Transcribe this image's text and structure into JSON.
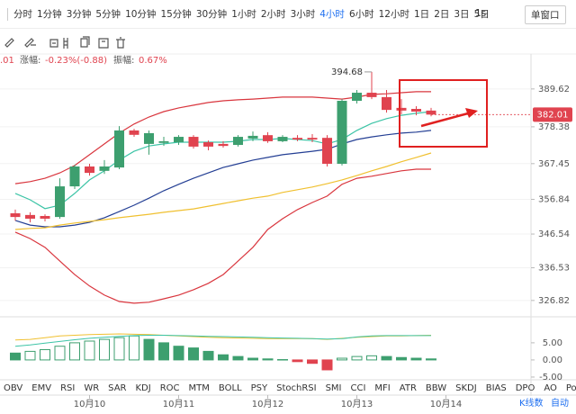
{
  "toolbar": {
    "intervals": [
      "分时",
      "1分钟",
      "3分钟",
      "5分钟",
      "10分钟",
      "15分钟",
      "30分钟",
      "1小时",
      "2小时",
      "3小时",
      "4小时",
      "6小时",
      "12小时",
      "1日",
      "2日",
      "3日",
      "5日"
    ],
    "active_index": 10,
    "speed": "1s",
    "window": "单窗口"
  },
  "info": {
    "last_fragment": ".01",
    "change_label": "涨幅:",
    "change_value": "-0.23%(-0.88)",
    "amplitude_label": "振幅:",
    "amplitude_value": "0.67%"
  },
  "indicators": [
    "OBV",
    "EMV",
    "RSI",
    "WR",
    "SAR",
    "KDJ",
    "ROC",
    "MTM",
    "BOLL",
    "PSY",
    "StochRSI",
    "SMI",
    "CCI",
    "MFI",
    "ATR",
    "BBW",
    "SKDJ",
    "BIAS",
    "DPO",
    "AO",
    "Position"
  ],
  "footer": {
    "kline_count": "K线数",
    "auto": "自动"
  },
  "chart_data": {
    "type": "candlestick",
    "categories": [
      null,
      null,
      null,
      null,
      null,
      "10月10",
      null,
      null,
      null,
      null,
      null,
      "10月11",
      null,
      null,
      null,
      null,
      null,
      "10月12",
      null,
      null,
      null,
      null,
      null,
      "10月13",
      null,
      null,
      null,
      null,
      null,
      "10月14"
    ],
    "open": [
      352.7,
      352.2,
      351.9,
      351.6,
      360.7,
      366.6,
      365.3,
      366.3,
      377.3,
      373.3,
      373.6,
      373.8,
      375.4,
      373.8,
      373.3,
      373.0,
      374.9,
      375.9,
      374.1,
      375.1,
      375.1,
      375.1,
      367.4,
      386.1,
      388.5,
      387.2,
      384.0,
      383.7,
      383.2,
      null
    ],
    "high": [
      353.8,
      353.0,
      352.4,
      363.1,
      367.1,
      367.4,
      368.5,
      378.6,
      377.8,
      377.3,
      375.4,
      375.9,
      375.9,
      374.3,
      374.1,
      375.9,
      377.0,
      376.8,
      375.9,
      375.9,
      376.2,
      375.9,
      386.6,
      389.3,
      394.68,
      389.3,
      386.6,
      384.5,
      384.0,
      null
    ],
    "low": [
      350.5,
      350.0,
      350.3,
      351.1,
      359.9,
      363.9,
      364.4,
      365.8,
      375.4,
      370.1,
      372.7,
      373.0,
      371.9,
      371.4,
      372.2,
      372.5,
      374.1,
      373.6,
      373.8,
      374.1,
      373.8,
      366.6,
      366.9,
      385.3,
      386.6,
      382.6,
      382.1,
      381.8,
      381.5,
      null
    ],
    "close": [
      351.6,
      351.1,
      351.1,
      360.7,
      366.6,
      364.7,
      366.6,
      377.3,
      376.0,
      376.5,
      374.1,
      375.4,
      372.5,
      372.5,
      372.7,
      375.4,
      375.7,
      374.1,
      375.4,
      374.6,
      374.6,
      367.4,
      386.1,
      388.5,
      387.2,
      383.4,
      383.2,
      382.9,
      382.01,
      null
    ],
    "up_color": "#3d9f6f",
    "down_color": "#e0434f",
    "overlays": [
      {
        "color": "#d9363e",
        "values": [
          361.5,
          362.1,
          363.1,
          364.7,
          366.9,
          370.1,
          373.3,
          376.5,
          379.2,
          381.3,
          382.9,
          384.0,
          384.8,
          385.6,
          386.1,
          386.4,
          386.6,
          386.9,
          387.2,
          387.2,
          387.2,
          386.9,
          386.6,
          387.2,
          388.0,
          388.2,
          388.5,
          388.8,
          388.8,
          null
        ]
      },
      {
        "color": "#d9363e",
        "values": [
          347.1,
          345.2,
          342.6,
          338.5,
          334.5,
          331.1,
          328.4,
          326.5,
          326.0,
          326.3,
          327.3,
          328.4,
          330.0,
          331.9,
          334.5,
          338.5,
          342.6,
          347.9,
          351.1,
          353.8,
          355.9,
          357.8,
          361.3,
          363.1,
          363.7,
          364.5,
          365.3,
          365.8,
          365.8,
          null
        ]
      },
      {
        "color": "#3cc4a6",
        "values": [
          358.6,
          356.7,
          354.1,
          355.1,
          358.6,
          362.6,
          365.3,
          368.5,
          371.1,
          372.7,
          373.3,
          373.8,
          373.8,
          373.8,
          373.8,
          374.1,
          374.6,
          374.6,
          374.9,
          374.6,
          374.3,
          373.3,
          374.6,
          377.3,
          379.4,
          380.8,
          381.8,
          382.4,
          382.9,
          null
        ]
      },
      {
        "color": "#243f94",
        "values": [
          350.6,
          349.2,
          348.7,
          348.7,
          349.2,
          350.0,
          351.4,
          353.2,
          355.1,
          357.2,
          359.4,
          361.3,
          363.1,
          364.7,
          366.3,
          367.4,
          368.5,
          369.3,
          370.1,
          370.6,
          371.1,
          371.7,
          373.3,
          374.6,
          375.4,
          376.0,
          376.5,
          376.8,
          377.3,
          null
        ]
      },
      {
        "color": "#f0c030",
        "values": [
          347.9,
          348.2,
          348.4,
          349.2,
          349.8,
          350.3,
          350.8,
          351.4,
          351.9,
          352.4,
          353.0,
          353.5,
          354.0,
          354.8,
          355.6,
          356.4,
          357.2,
          357.8,
          358.9,
          359.7,
          360.5,
          361.5,
          362.6,
          363.9,
          365.3,
          366.6,
          368.0,
          369.3,
          370.6,
          null
        ]
      }
    ],
    "ylim": [
      322.5,
      400
    ],
    "yticks": [
      326.82,
      336.53,
      346.54,
      356.84,
      367.45,
      378.38,
      389.62
    ],
    "grid": true,
    "macd": {
      "values": [
        2.0,
        2.5,
        3.0,
        4.0,
        5.0,
        5.5,
        6.0,
        6.5,
        7.0,
        6.0,
        5.0,
        4.0,
        3.5,
        2.5,
        1.5,
        1.0,
        0.5,
        0.3,
        0.1,
        -0.5,
        -1.0,
        -2.9,
        0.5,
        1.0,
        1.2,
        1.0,
        0.7,
        0.5,
        0.3,
        null
      ],
      "lines": [
        {
          "color": "#f0c030",
          "values": [
            5.8,
            6.0,
            6.5,
            7.0,
            7.2,
            7.4,
            7.5,
            7.6,
            7.5,
            7.4,
            7.2,
            7.0,
            6.8,
            6.6,
            6.5,
            6.4,
            6.3,
            6.2,
            6.2,
            6.2,
            6.2,
            6.0,
            6.3,
            6.6,
            6.8,
            7.0,
            7.0,
            7.1,
            7.2,
            null
          ]
        },
        {
          "color": "#3cc4a6",
          "values": [
            4.0,
            4.4,
            4.9,
            5.4,
            5.9,
            6.3,
            6.6,
            6.9,
            7.1,
            7.2,
            7.2,
            7.1,
            7.0,
            6.9,
            6.8,
            6.7,
            6.6,
            6.5,
            6.4,
            6.3,
            6.2,
            6.1,
            6.2,
            6.7,
            7.0,
            7.1,
            7.1,
            7.1,
            7.1,
            null
          ]
        }
      ],
      "ylim": [
        -5.8,
        11.8
      ],
      "yticks": [
        {
          "value": -5,
          "label": "-5.00"
        },
        {
          "value": 0,
          "label": "0.00"
        },
        {
          "value": 5,
          "label": "5.00"
        }
      ]
    }
  }
}
